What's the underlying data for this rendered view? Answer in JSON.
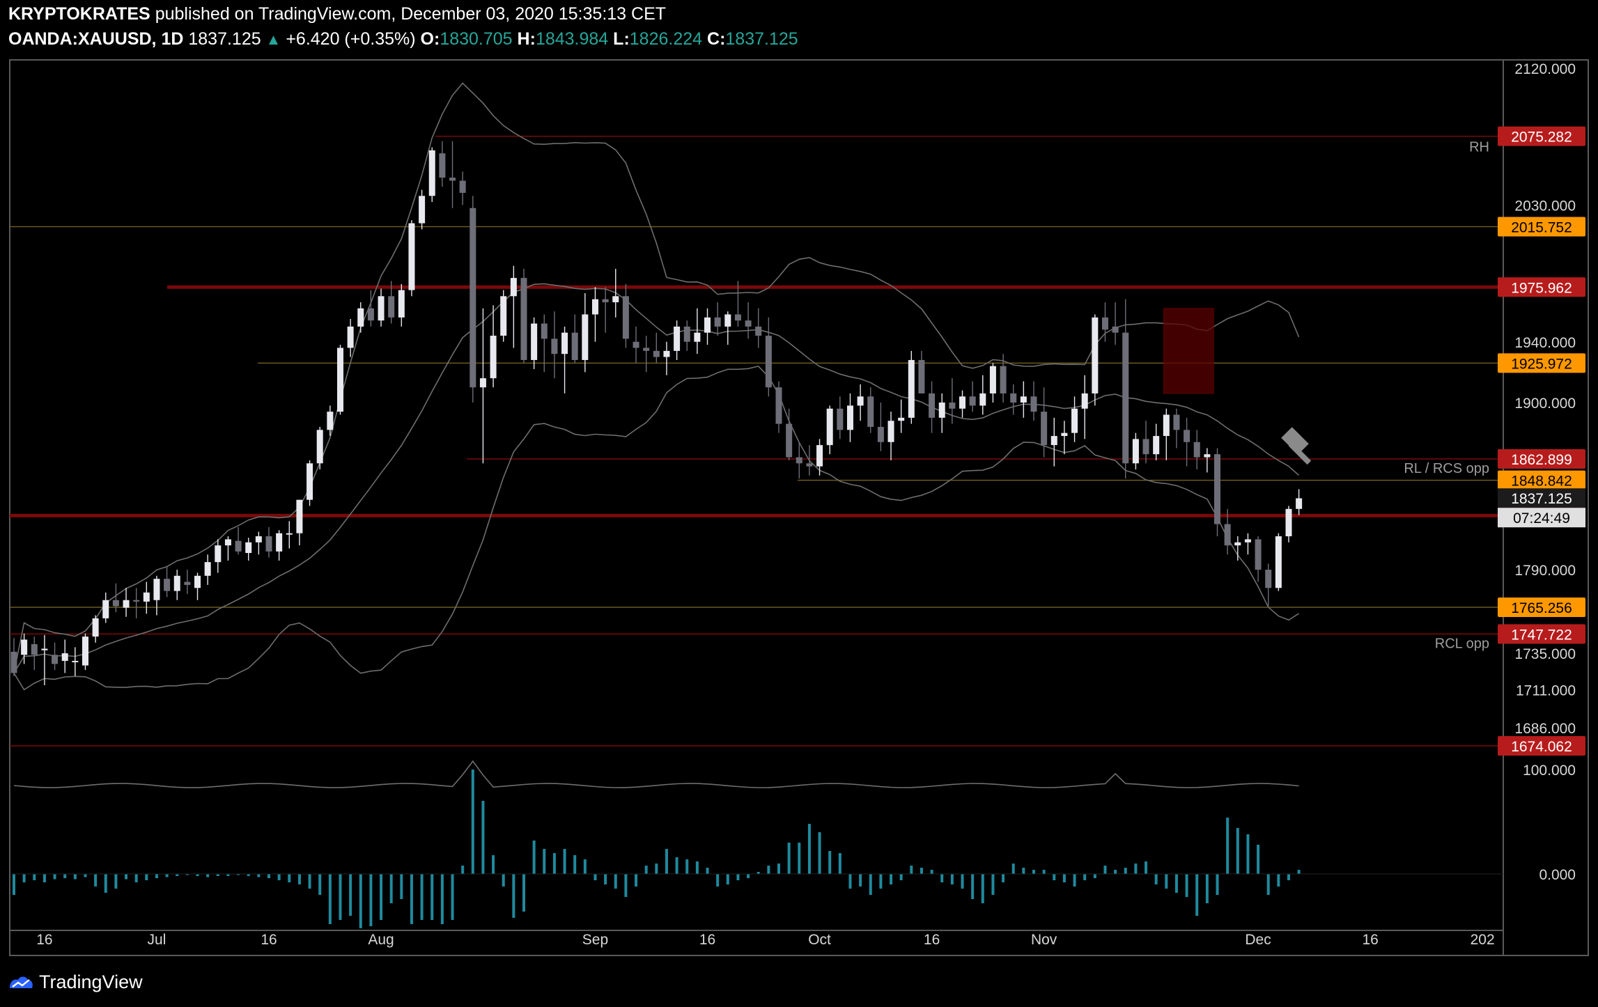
{
  "header": {
    "author": "KRYPTOKRATES",
    "published": "published on TradingView.com, December 03, 2020 15:35:13 CET",
    "symbol": "OANDA:XAUUSD, 1D",
    "last": "1837.125",
    "change_arrow": "▲",
    "change": "+6.420 (+0.35%)",
    "o_label": "O:",
    "o_value": "1830.705",
    "h_label": "H:",
    "h_value": "1843.984",
    "l_label": "L:",
    "l_value": "1826.224",
    "c_label": "C:",
    "c_value": "1837.125"
  },
  "footer": {
    "brand": "TradingView",
    "logo_icon": "tradingview-logo-icon"
  },
  "colors": {
    "up_candle": "#e8e8ef",
    "down_candle": "#6e6e78",
    "support_red": "#8b0000",
    "support_orange": "#ff9800",
    "volume_bar": "#1f8a9e",
    "bollinger": "#7a7a7a"
  },
  "chart_data": {
    "type": "candlestick",
    "symbol": "OANDA:XAUUSD",
    "timeframe": "1D",
    "ylim": [
      1655,
      2130
    ],
    "price_ticks": [
      "2120.000",
      "2030.000",
      "1940.000",
      "1900.000",
      "1790.000",
      "1735.000",
      "1711.000",
      "1686.000"
    ],
    "x_ticks": [
      "16",
      "Jul",
      "16",
      "Aug",
      "Sep",
      "16",
      "Oct",
      "16",
      "Nov",
      "Dec",
      "16",
      "202"
    ],
    "x_tick_bars": [
      3,
      14,
      25,
      36,
      57,
      68,
      79,
      90,
      101,
      122,
      133,
      144
    ],
    "levels": [
      {
        "price": 2075.282,
        "label": "2075.282",
        "color": "red",
        "note": "RH"
      },
      {
        "price": 2015.752,
        "label": "2015.752",
        "color": "orange",
        "note": ""
      },
      {
        "price": 1975.962,
        "label": "1975.962",
        "color": "red",
        "note": ""
      },
      {
        "price": 1925.972,
        "label": "1925.972",
        "color": "orange",
        "note": ""
      },
      {
        "price": 1862.899,
        "label": "1862.899",
        "color": "red",
        "note": "RL / RCS opp"
      },
      {
        "price": 1848.842,
        "label": "1848.842",
        "color": "orange",
        "note": ""
      },
      {
        "price": 1825.613,
        "label": "1825.613",
        "color": "red",
        "note": ""
      },
      {
        "price": 1765.256,
        "label": "1765.256",
        "color": "orange",
        "note": ""
      },
      {
        "price": 1747.722,
        "label": "1747.722",
        "color": "red",
        "note": "RCL opp"
      },
      {
        "price": 1674.062,
        "label": "1674.062",
        "color": "red",
        "note": ""
      }
    ],
    "current_price": "1837.125",
    "countdown": "07:24:49",
    "volume_ticks": [
      "100.000",
      "0.000"
    ],
    "candles_ohlc": [
      [
        1736,
        1745,
        1720,
        1722
      ],
      [
        1734,
        1748,
        1728,
        1744
      ],
      [
        1741,
        1746,
        1724,
        1734
      ],
      [
        1737,
        1747,
        1714,
        1738
      ],
      [
        1734,
        1742,
        1724,
        1728
      ],
      [
        1730,
        1744,
        1722,
        1735
      ],
      [
        1730,
        1739,
        1720,
        1730
      ],
      [
        1727,
        1748,
        1724,
        1746
      ],
      [
        1746,
        1760,
        1742,
        1758
      ],
      [
        1758,
        1775,
        1755,
        1770
      ],
      [
        1770,
        1781,
        1762,
        1766
      ],
      [
        1765,
        1778,
        1759,
        1770
      ],
      [
        1770,
        1778,
        1758,
        1769
      ],
      [
        1769,
        1782,
        1761,
        1775
      ],
      [
        1770,
        1786,
        1760,
        1784
      ],
      [
        1784,
        1792,
        1772,
        1776
      ],
      [
        1776,
        1790,
        1770,
        1786
      ],
      [
        1782,
        1790,
        1774,
        1780
      ],
      [
        1778,
        1788,
        1770,
        1786
      ],
      [
        1786,
        1800,
        1780,
        1795
      ],
      [
        1795,
        1810,
        1788,
        1806
      ],
      [
        1806,
        1812,
        1796,
        1810
      ],
      [
        1809,
        1818,
        1800,
        1802
      ],
      [
        1801,
        1811,
        1796,
        1808
      ],
      [
        1808,
        1815,
        1800,
        1812
      ],
      [
        1812,
        1818,
        1798,
        1802
      ],
      [
        1802,
        1816,
        1796,
        1814
      ],
      [
        1814,
        1822,
        1804,
        1814
      ],
      [
        1814,
        1836,
        1806,
        1836
      ],
      [
        1836,
        1862,
        1832,
        1860
      ],
      [
        1860,
        1884,
        1856,
        1882
      ],
      [
        1882,
        1898,
        1878,
        1894
      ],
      [
        1894,
        1938,
        1892,
        1936
      ],
      [
        1936,
        1955,
        1930,
        1950
      ],
      [
        1950,
        1966,
        1946,
        1962
      ],
      [
        1962,
        1974,
        1950,
        1954
      ],
      [
        1954,
        1975,
        1950,
        1970
      ],
      [
        1970,
        1980,
        1952,
        1956
      ],
      [
        1956,
        1978,
        1950,
        1974
      ],
      [
        1974,
        2020,
        1970,
        2018
      ],
      [
        2018,
        2040,
        2014,
        2036
      ],
      [
        2036,
        2068,
        2032,
        2066
      ],
      [
        2064,
        2072,
        2042,
        2048
      ],
      [
        2048,
        2072,
        2028,
        2046
      ],
      [
        2046,
        2052,
        2030,
        2038
      ],
      [
        2028,
        2036,
        1900,
        1910
      ],
      [
        1910,
        1962,
        1860,
        1916
      ],
      [
        1916,
        1964,
        1910,
        1944
      ],
      [
        1944,
        1974,
        1940,
        1970
      ],
      [
        1970,
        1990,
        1936,
        1982
      ],
      [
        1982,
        1988,
        1926,
        1928
      ],
      [
        1928,
        1956,
        1922,
        1952
      ],
      [
        1952,
        1958,
        1920,
        1942
      ],
      [
        1942,
        1960,
        1916,
        1932
      ],
      [
        1932,
        1950,
        1906,
        1946
      ],
      [
        1946,
        1958,
        1926,
        1928
      ],
      [
        1928,
        1972,
        1920,
        1958
      ],
      [
        1958,
        1976,
        1940,
        1968
      ],
      [
        1968,
        1976,
        1946,
        1966
      ],
      [
        1966,
        1988,
        1956,
        1970
      ],
      [
        1970,
        1978,
        1936,
        1942
      ],
      [
        1940,
        1950,
        1926,
        1936
      ],
      [
        1936,
        1944,
        1920,
        1934
      ],
      [
        1934,
        1946,
        1926,
        1930
      ],
      [
        1930,
        1940,
        1918,
        1934
      ],
      [
        1934,
        1954,
        1928,
        1950
      ],
      [
        1950,
        1954,
        1934,
        1940
      ],
      [
        1940,
        1962,
        1932,
        1946
      ],
      [
        1946,
        1962,
        1938,
        1956
      ],
      [
        1956,
        1966,
        1944,
        1950
      ],
      [
        1950,
        1960,
        1938,
        1958
      ],
      [
        1958,
        1980,
        1950,
        1954
      ],
      [
        1954,
        1966,
        1942,
        1950
      ],
      [
        1950,
        1962,
        1936,
        1944
      ],
      [
        1944,
        1956,
        1904,
        1910
      ],
      [
        1910,
        1914,
        1880,
        1886
      ],
      [
        1886,
        1896,
        1862,
        1864
      ],
      [
        1864,
        1874,
        1850,
        1860
      ],
      [
        1860,
        1872,
        1852,
        1858
      ],
      [
        1858,
        1876,
        1852,
        1872
      ],
      [
        1872,
        1898,
        1866,
        1896
      ],
      [
        1896,
        1904,
        1876,
        1882
      ],
      [
        1882,
        1906,
        1874,
        1898
      ],
      [
        1898,
        1912,
        1888,
        1904
      ],
      [
        1904,
        1910,
        1880,
        1884
      ],
      [
        1884,
        1900,
        1868,
        1874
      ],
      [
        1874,
        1894,
        1862,
        1888
      ],
      [
        1888,
        1902,
        1880,
        1890
      ],
      [
        1890,
        1934,
        1886,
        1928
      ],
      [
        1928,
        1934,
        1906,
        1906
      ],
      [
        1906,
        1914,
        1880,
        1890
      ],
      [
        1890,
        1906,
        1880,
        1900
      ],
      [
        1900,
        1916,
        1886,
        1896
      ],
      [
        1896,
        1908,
        1890,
        1904
      ],
      [
        1904,
        1914,
        1894,
        1898
      ],
      [
        1898,
        1918,
        1892,
        1906
      ],
      [
        1906,
        1926,
        1900,
        1924
      ],
      [
        1924,
        1932,
        1900,
        1906
      ],
      [
        1906,
        1912,
        1892,
        1900
      ],
      [
        1900,
        1914,
        1890,
        1904
      ],
      [
        1904,
        1914,
        1888,
        1894
      ],
      [
        1894,
        1910,
        1864,
        1872
      ],
      [
        1872,
        1890,
        1858,
        1878
      ],
      [
        1878,
        1888,
        1866,
        1880
      ],
      [
        1880,
        1904,
        1874,
        1896
      ],
      [
        1896,
        1918,
        1876,
        1906
      ],
      [
        1906,
        1958,
        1898,
        1956
      ],
      [
        1956,
        1966,
        1940,
        1948
      ],
      [
        1950,
        1966,
        1938,
        1946
      ],
      [
        1946,
        1968,
        1850,
        1860
      ],
      [
        1860,
        1880,
        1856,
        1876
      ],
      [
        1876,
        1888,
        1860,
        1866
      ],
      [
        1866,
        1886,
        1862,
        1878
      ],
      [
        1878,
        1896,
        1862,
        1892
      ],
      [
        1892,
        1896,
        1870,
        1882
      ],
      [
        1882,
        1890,
        1858,
        1874
      ],
      [
        1874,
        1882,
        1856,
        1864
      ],
      [
        1864,
        1870,
        1854,
        1866
      ],
      [
        1866,
        1870,
        1812,
        1820
      ],
      [
        1820,
        1830,
        1800,
        1806
      ],
      [
        1806,
        1812,
        1796,
        1808
      ],
      [
        1808,
        1814,
        1800,
        1810
      ],
      [
        1810,
        1812,
        1782,
        1790
      ],
      [
        1790,
        1794,
        1766,
        1778
      ],
      [
        1778,
        1814,
        1776,
        1812
      ],
      [
        1812,
        1832,
        1808,
        1830
      ],
      [
        1830,
        1843,
        1826,
        1837
      ]
    ],
    "volume": [
      -20,
      -8,
      -6,
      -8,
      -5,
      -4,
      -5,
      -3,
      -12,
      -18,
      -14,
      -5,
      -8,
      -6,
      -4,
      -3,
      -2,
      -1,
      -2,
      -3,
      -2,
      -2,
      -1,
      -2,
      -3,
      -4,
      -6,
      -8,
      -10,
      -14,
      -20,
      -48,
      -44,
      -40,
      -52,
      -50,
      -44,
      -28,
      -24,
      -48,
      -44,
      -44,
      -48,
      -44,
      8,
      100,
      70,
      18,
      -12,
      -42,
      -36,
      32,
      24,
      20,
      24,
      18,
      14,
      -6,
      -10,
      -14,
      -22,
      -12,
      8,
      10,
      24,
      16,
      14,
      12,
      6,
      -12,
      -10,
      -6,
      -4,
      2,
      8,
      10,
      30,
      30,
      48,
      40,
      22,
      20,
      -14,
      -12,
      -20,
      -14,
      -10,
      -6,
      8,
      6,
      4,
      -8,
      -10,
      -14,
      -24,
      -28,
      -20,
      -8,
      10,
      6,
      4,
      4,
      -6,
      -8,
      -12,
      -6,
      -4,
      8,
      4,
      6,
      10,
      12,
      -10,
      -14,
      -18,
      -22,
      -40,
      -28,
      -20,
      54,
      44,
      38,
      28,
      -20,
      -12,
      -6,
      4,
      10,
      14,
      8,
      -6,
      20,
      40,
      32,
      24,
      16,
      22,
      -14,
      -28,
      -30
    ],
    "signal_line": "gray smoothed line above volume"
  }
}
